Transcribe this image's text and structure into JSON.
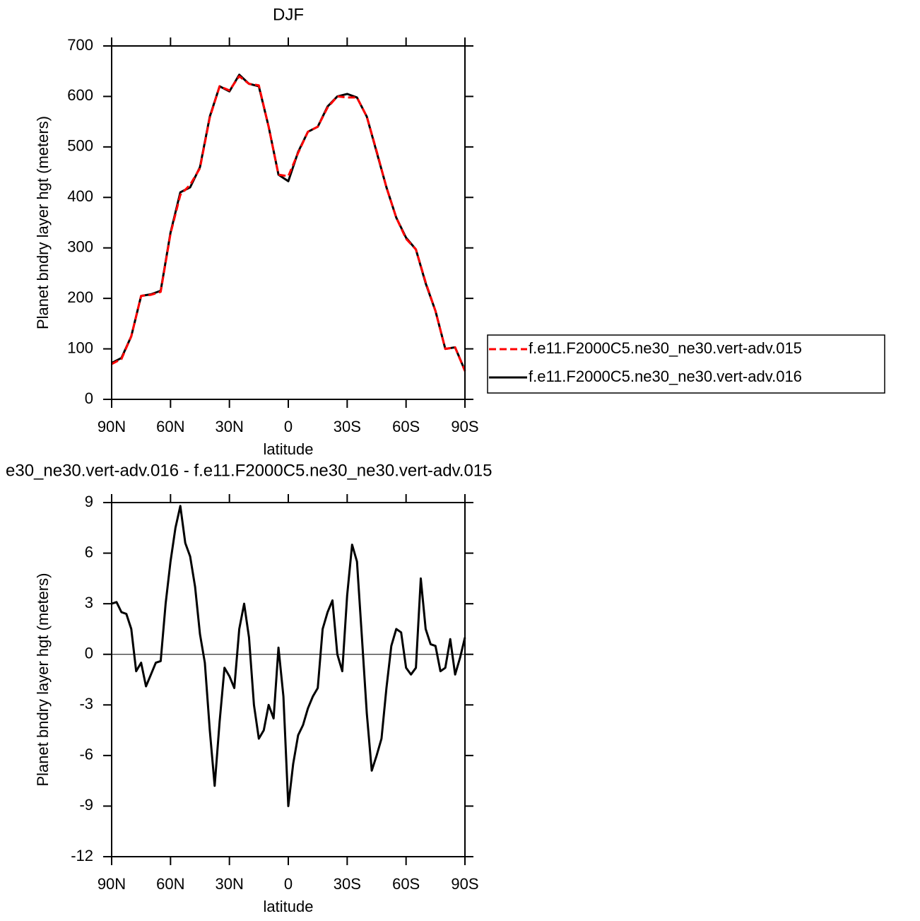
{
  "chart_data": [
    {
      "type": "line",
      "title": "DJF",
      "xlabel": "latitude",
      "ylabel": "Planet bndry layer hgt (meters)",
      "x": [
        90,
        85,
        80,
        75,
        70,
        65,
        60,
        55,
        50,
        45,
        40,
        35,
        30,
        25,
        20,
        15,
        10,
        5,
        0,
        -5,
        -10,
        -15,
        -20,
        -25,
        -30,
        -35,
        -40,
        -45,
        -50,
        -55,
        -60,
        -65,
        -70,
        -75,
        -80,
        -85,
        -90
      ],
      "series": [
        {
          "name": "f.e11.F2000C5.ne30_ne30.vert-adv.015",
          "color": "#ff0000",
          "linestyle": "dashed",
          "values": [
            70,
            80,
            125,
            205,
            207,
            213,
            328,
            405,
            425,
            458,
            558,
            620,
            612,
            640,
            625,
            622,
            540,
            445,
            442,
            488,
            530,
            540,
            578,
            600,
            598,
            598,
            560,
            492,
            420,
            360,
            318,
            297,
            232,
            175,
            100,
            103,
            56
          ]
        },
        {
          "name": "f.e11.F2000C5.ne30_ne30.vert-adv.016",
          "color": "#000000",
          "linestyle": "solid",
          "values": [
            72,
            82,
            125,
            205,
            208,
            215,
            330,
            410,
            420,
            460,
            560,
            620,
            610,
            643,
            625,
            620,
            540,
            445,
            432,
            490,
            530,
            540,
            580,
            600,
            605,
            598,
            560,
            490,
            420,
            360,
            320,
            297,
            230,
            175,
            100,
            103,
            57
          ]
        }
      ],
      "xlim": [
        90,
        -90
      ],
      "xticks": [
        {
          "value": 90,
          "label": "90N"
        },
        {
          "value": 60,
          "label": "60N"
        },
        {
          "value": 30,
          "label": "30N"
        },
        0,
        {
          "value": -30,
          "label": "30S"
        },
        {
          "value": -60,
          "label": "60S"
        },
        {
          "value": -90,
          "label": "90S"
        }
      ],
      "ylim": [
        0,
        700
      ],
      "yticks": [
        0,
        100,
        200,
        300,
        400,
        500,
        600,
        700
      ],
      "legend": "right"
    },
    {
      "type": "line",
      "title": "e30_ne30.vert-adv.016 - f.e11.F2000C5.ne30_ne30.vert-adv.015",
      "xlabel": "latitude",
      "ylabel": "Planet bndry layer hgt (meters)",
      "x": [
        90,
        87.5,
        85,
        82.5,
        80,
        77.5,
        75,
        72.5,
        70,
        67.5,
        65,
        62.5,
        60,
        57.5,
        55,
        52.5,
        50,
        47.5,
        45,
        42.5,
        40,
        37.5,
        35,
        32.5,
        30,
        27.5,
        25,
        22.5,
        20,
        17.5,
        15,
        12.5,
        10,
        7.5,
        5,
        2.5,
        0,
        -2.5,
        -5,
        -7.5,
        -10,
        -12.5,
        -15,
        -17.5,
        -20,
        -22.5,
        -25,
        -27.5,
        -30,
        -32.5,
        -35,
        -37.5,
        -40,
        -42.5,
        -45,
        -47.5,
        -50,
        -52.5,
        -55,
        -57.5,
        -60,
        -62.5,
        -65,
        -67.5,
        -70,
        -72.5,
        -75,
        -77.5,
        -80,
        -82.5,
        -85,
        -87.5,
        -90
      ],
      "values": [
        3.0,
        3.1,
        2.5,
        2.4,
        1.5,
        -1.0,
        -0.5,
        -1.9,
        -1.2,
        -0.5,
        -0.4,
        3.0,
        5.5,
        7.5,
        8.8,
        6.6,
        5.8,
        4.0,
        1.2,
        -0.5,
        -4.5,
        -7.8,
        -4.0,
        -0.8,
        -1.3,
        -2.0,
        1.5,
        3.0,
        1.0,
        -3.0,
        -5.0,
        -4.5,
        -3.0,
        -3.8,
        0.4,
        -2.5,
        -9.0,
        -6.5,
        -4.8,
        -4.2,
        -3.2,
        -2.5,
        -2.0,
        1.5,
        2.5,
        3.2,
        0.0,
        -1.0,
        3.5,
        6.5,
        5.5,
        1.0,
        -3.5,
        -6.9,
        -6.0,
        -5.0,
        -2.0,
        0.5,
        1.5,
        1.3,
        -0.8,
        -1.2,
        -0.8,
        4.5,
        1.5,
        0.6,
        0.5,
        -1.0,
        -0.8,
        0.9,
        -1.2,
        -0.2,
        1.0
      ],
      "color": "#000000",
      "xlim": [
        90,
        -90
      ],
      "xticks": [
        {
          "value": 90,
          "label": "90N"
        },
        {
          "value": 60,
          "label": "60N"
        },
        {
          "value": 30,
          "label": "30N"
        },
        0,
        {
          "value": -30,
          "label": "30S"
        },
        {
          "value": -60,
          "label": "60S"
        },
        {
          "value": -90,
          "label": "90S"
        }
      ],
      "ylim": [
        -12,
        9
      ],
      "yticks": [
        -12,
        -9,
        -6,
        -3,
        0,
        3,
        6,
        9
      ]
    }
  ]
}
